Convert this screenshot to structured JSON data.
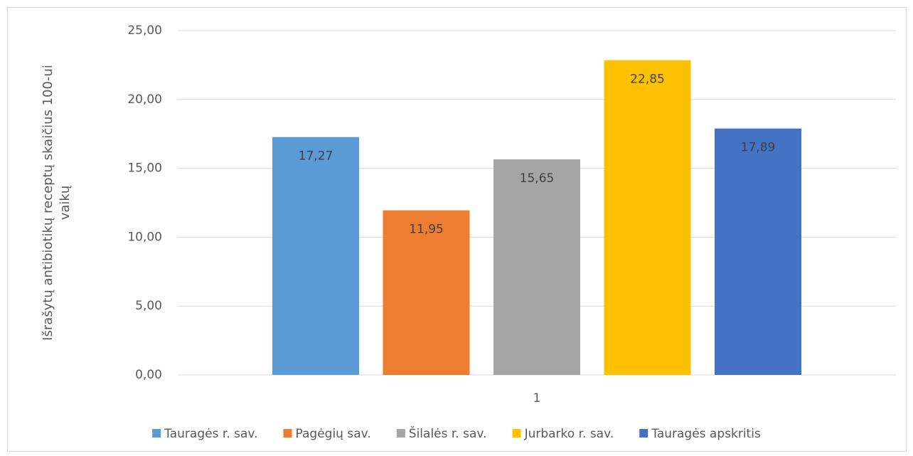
{
  "chart_data": {
    "type": "bar",
    "y_label": [
      "Išrašytų antibiotikų receptų skaičius 100-ui",
      "vaikų"
    ],
    "categories": [
      "1"
    ],
    "series": [
      {
        "name": "Tauragės r. sav.",
        "color": "#5b9bd5",
        "values": [
          17.27
        ],
        "value_labels": [
          "17,27"
        ]
      },
      {
        "name": "Pagėgių sav.",
        "color": "#ed7d31",
        "values": [
          11.95
        ],
        "value_labels": [
          "11,95"
        ]
      },
      {
        "name": "Šilalės r. sav.",
        "color": "#a5a5a5",
        "values": [
          15.65
        ],
        "value_labels": [
          "15,65"
        ]
      },
      {
        "name": "Jurbarko r. sav.",
        "color": "#ffc000",
        "values": [
          22.85
        ],
        "value_labels": [
          "22,85"
        ]
      },
      {
        "name": "Tauragės apskritis",
        "color": "#4472c4",
        "values": [
          17.89
        ],
        "value_labels": [
          "17,89"
        ]
      }
    ],
    "ylim": [
      0,
      25
    ],
    "yticks": [
      {
        "value": 0,
        "label": "0,00"
      },
      {
        "value": 5,
        "label": "5,00"
      },
      {
        "value": 10,
        "label": "10,00"
      },
      {
        "value": 15,
        "label": "15,00"
      },
      {
        "value": 20,
        "label": "20,00"
      },
      {
        "value": 25,
        "label": "25,00"
      }
    ],
    "grid": true,
    "legend": "bottom"
  }
}
